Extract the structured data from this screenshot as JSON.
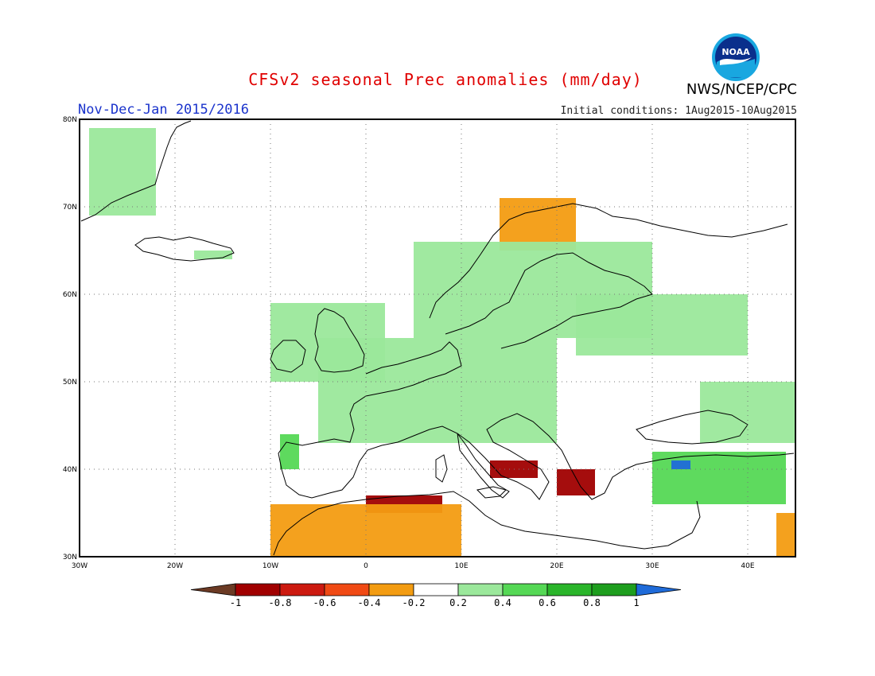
{
  "title": "CFSv2 seasonal Prec anomalies (mm/day)",
  "period": "Nov-Dec-Jan 2015/2016",
  "initial_conditions": "Initial conditions: 1Aug2015-10Aug2015",
  "agency": "NWS/NCEP/CPC",
  "logo_text": "NOAA",
  "lon_ticks": [
    "30W",
    "20W",
    "10W",
    "0",
    "10E",
    "20E",
    "30E",
    "40E"
  ],
  "lat_ticks": [
    "30N",
    "40N",
    "50N",
    "60N",
    "70N",
    "80N"
  ],
  "colorbar": {
    "labels": [
      "-1",
      "-0.8",
      "-0.6",
      "-0.4",
      "-0.2",
      "0.2",
      "0.4",
      "0.6",
      "0.8",
      "1"
    ],
    "colors": [
      "#6b3a24",
      "#a00000",
      "#cc1a10",
      "#f04a14",
      "#f39c12",
      "#ffffff",
      "#9be89b",
      "#55d855",
      "#2ab52a",
      "#1e9e1e",
      "#1f6bd9"
    ]
  },
  "map_extent": {
    "lon": [
      -30,
      45
    ],
    "lat": [
      30,
      80
    ]
  },
  "anomaly_regions": [
    {
      "name": "greenland-east",
      "level": "0.2..0.4",
      "lon": [
        -29,
        -22
      ],
      "lat": [
        69,
        79
      ]
    },
    {
      "name": "iceland",
      "level": "0.2..0.4",
      "lon": [
        -18,
        -14
      ],
      "lat": [
        64,
        65
      ]
    },
    {
      "name": "norway-coast",
      "level": "-0.4..-0.2",
      "lon": [
        14,
        22
      ],
      "lat": [
        65,
        71
      ]
    },
    {
      "name": "scandinavia",
      "level": "0.2..0.4",
      "lon": [
        5,
        30
      ],
      "lat": [
        55,
        66
      ]
    },
    {
      "name": "british-isles",
      "level": "0.2..0.4",
      "lon": [
        -10,
        2
      ],
      "lat": [
        50,
        59
      ]
    },
    {
      "name": "central-europe",
      "level": "0.2..0.4",
      "lon": [
        -5,
        20
      ],
      "lat": [
        43,
        55
      ]
    },
    {
      "name": "baltic-russia",
      "level": "0.2..0.4",
      "lon": [
        22,
        40
      ],
      "lat": [
        53,
        60
      ]
    },
    {
      "name": "ukraine-south-russia",
      "level": "0.2..0.4",
      "lon": [
        35,
        45
      ],
      "lat": [
        43,
        50
      ]
    },
    {
      "name": "iberia-northwest",
      "level": "0.4..0.6",
      "lon": [
        -9,
        -7
      ],
      "lat": [
        40,
        44
      ]
    },
    {
      "name": "italy-south",
      "level": "-0.8..-0.6",
      "lon": [
        13,
        18
      ],
      "lat": [
        39,
        41
      ]
    },
    {
      "name": "greece",
      "level": "-0.8..-0.6",
      "lon": [
        20,
        24
      ],
      "lat": [
        37,
        40
      ]
    },
    {
      "name": "north-africa",
      "level": "-0.8..-0.6",
      "lon": [
        0,
        8
      ],
      "lat": [
        35,
        37
      ]
    },
    {
      "name": "morocco-algeria",
      "level": "-0.4..-0.2",
      "lon": [
        -10,
        10
      ],
      "lat": [
        30,
        36
      ]
    },
    {
      "name": "turkey",
      "level": "0.4..0.6",
      "lon": [
        30,
        44
      ],
      "lat": [
        36,
        42
      ]
    },
    {
      "name": "turkey-max",
      "level": "0.8..1",
      "lon": [
        32,
        34
      ],
      "lat": [
        40,
        41
      ]
    },
    {
      "name": "middle-east-east",
      "level": "-0.4..-0.2",
      "lon": [
        43,
        45
      ],
      "lat": [
        30,
        35
      ]
    }
  ]
}
